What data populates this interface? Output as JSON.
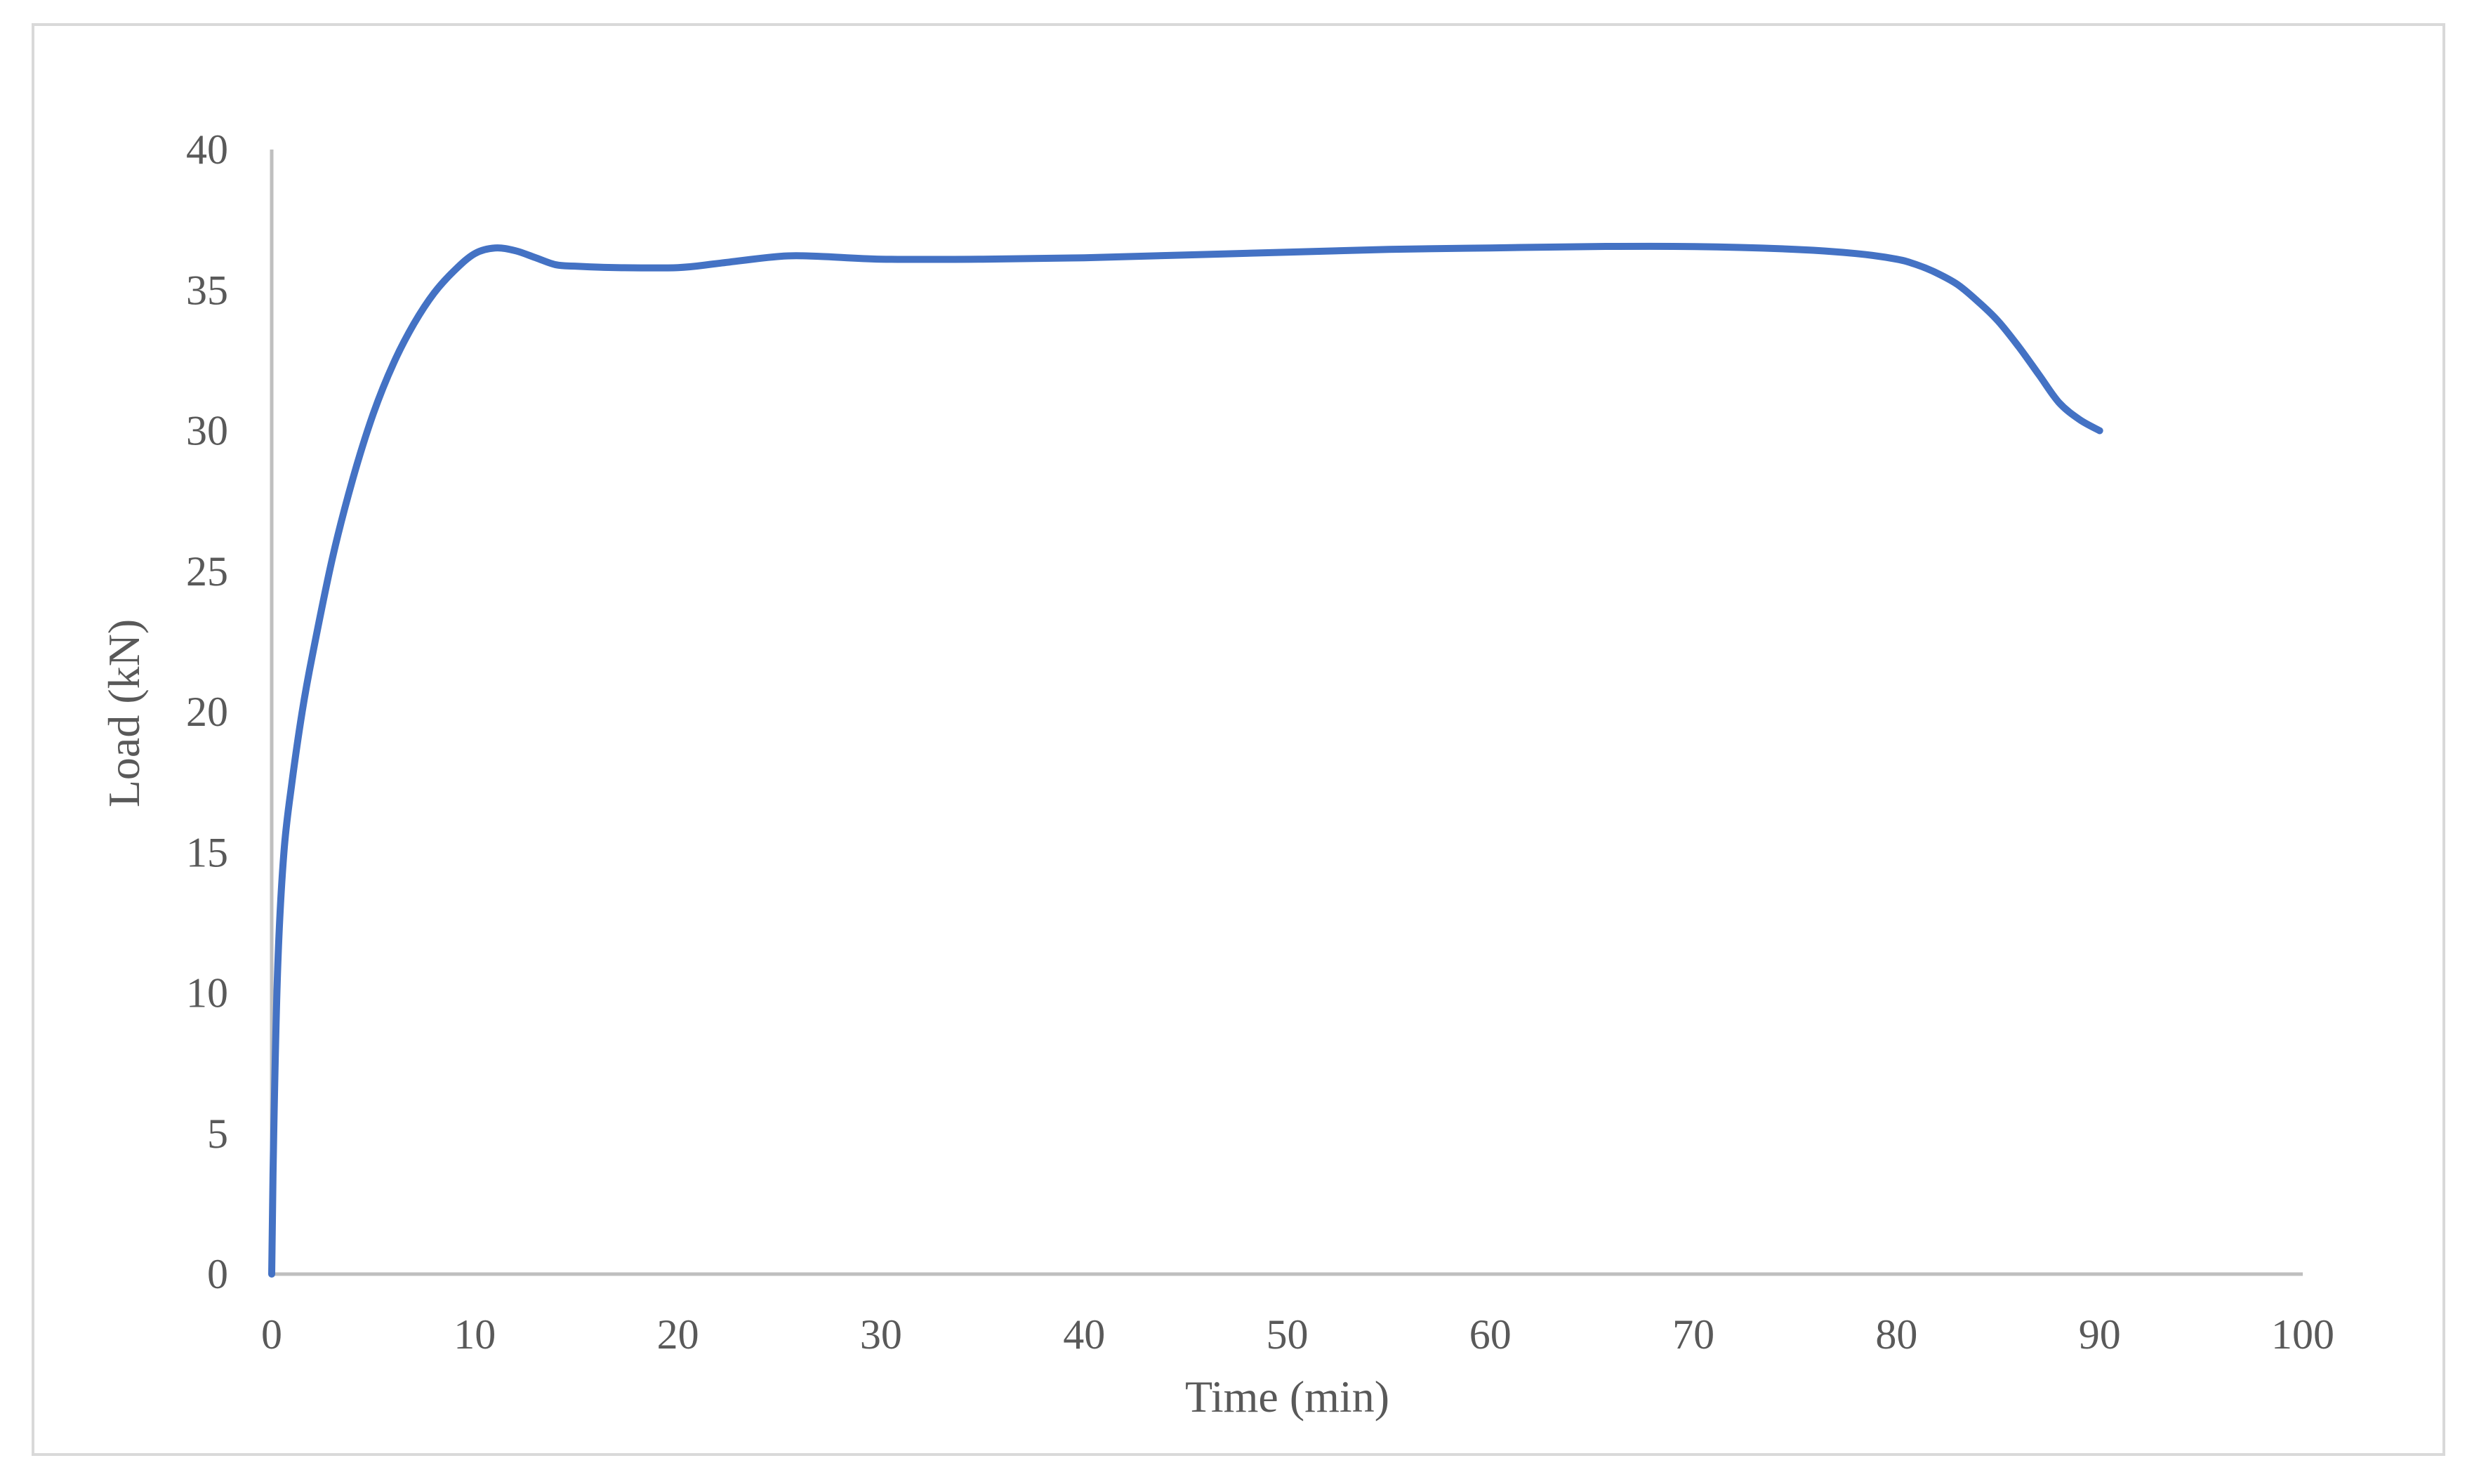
{
  "chart_data": {
    "type": "line",
    "title": "",
    "xlabel": "Time (min)",
    "ylabel": "Load (kN)",
    "xlim": [
      0,
      100
    ],
    "ylim": [
      0,
      40
    ],
    "x_ticks": [
      0,
      10,
      20,
      30,
      40,
      50,
      60,
      70,
      80,
      90,
      100
    ],
    "y_ticks": [
      0,
      5,
      10,
      15,
      20,
      25,
      30,
      35,
      40
    ],
    "grid": false,
    "legend": "none",
    "series": [
      {
        "color": "#4472C4",
        "x": [
          0,
          0.1,
          0.3,
          0.6,
          1,
          1.5,
          2,
          3,
          4,
          5,
          6,
          7,
          8,
          9,
          10,
          11,
          12,
          13,
          14,
          15,
          17,
          20,
          22,
          25,
          27,
          30,
          35,
          40,
          45,
          50,
          55,
          60,
          65,
          70,
          75,
          78,
          80,
          81,
          82,
          83,
          84,
          85,
          86,
          87,
          88,
          89,
          90
        ],
        "y": [
          0,
          5,
          11,
          15,
          17.5,
          20,
          22,
          25.5,
          28.3,
          30.6,
          32.4,
          33.8,
          34.9,
          35.7,
          36.3,
          36.5,
          36.4,
          36.15,
          35.9,
          35.85,
          35.8,
          35.8,
          35.95,
          36.2,
          36.2,
          36.1,
          36.1,
          36.15,
          36.25,
          36.35,
          36.45,
          36.5,
          36.55,
          36.55,
          36.45,
          36.3,
          36.1,
          35.9,
          35.6,
          35.2,
          34.6,
          33.9,
          33.0,
          32.0,
          31.0,
          30.4,
          30.0
        ]
      }
    ]
  }
}
